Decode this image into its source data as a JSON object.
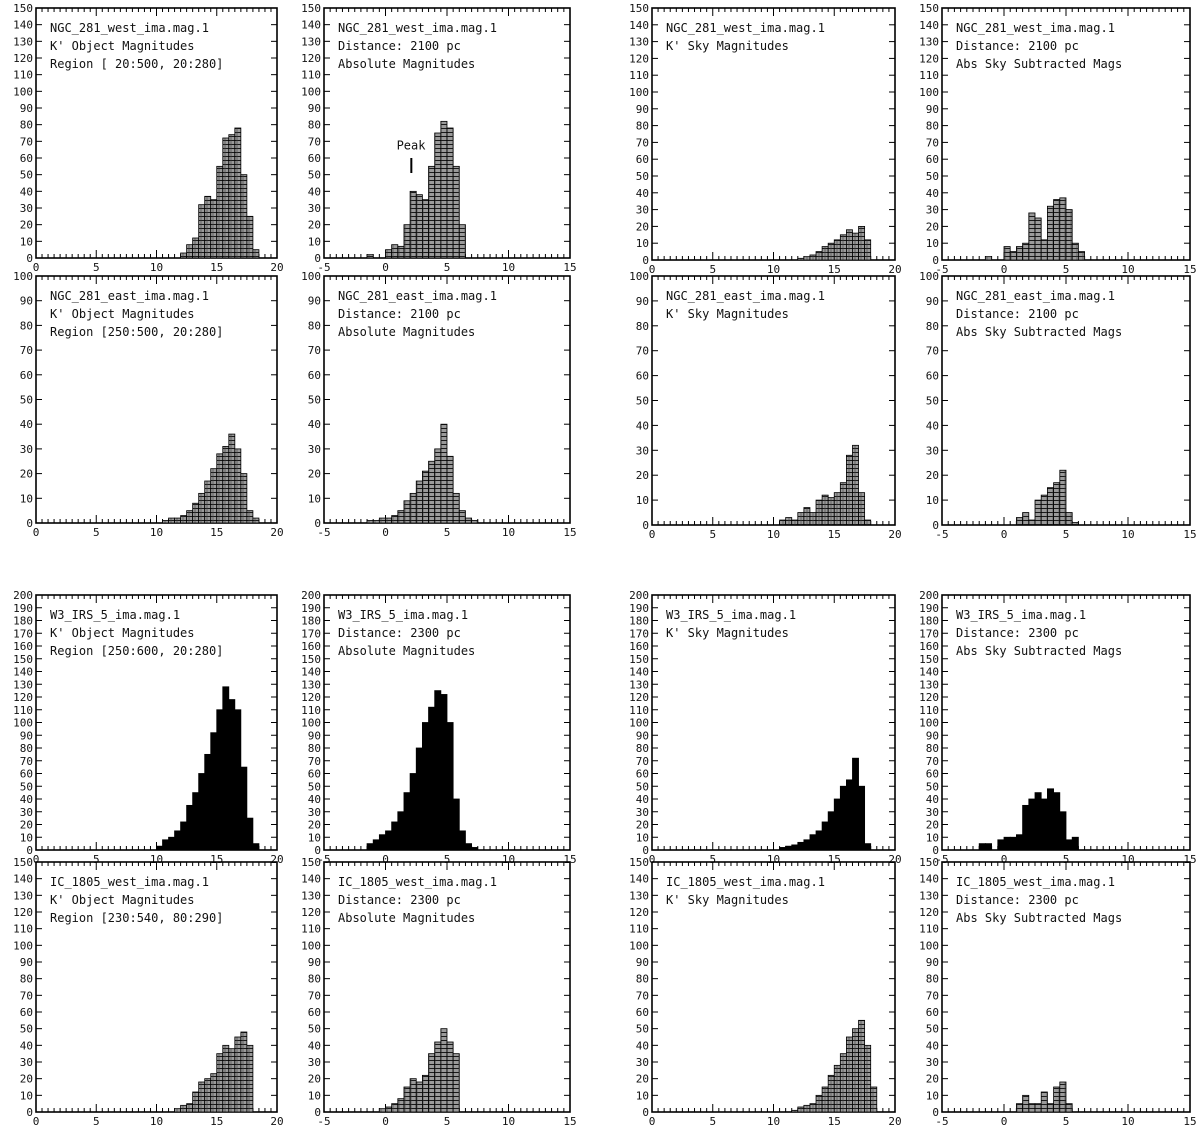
{
  "chart_data": [
    {
      "type": "bar",
      "group": "NGC_281_west",
      "xlim": [
        0,
        20
      ],
      "ylim": [
        0,
        150
      ],
      "ytick_step": 10,
      "xticks": [
        0,
        5,
        10,
        15,
        20
      ],
      "bar_fill": "hatched",
      "annotations": [
        "NGC_281_west_ima.mag.1",
        "K' Object Magnitudes",
        "Region [ 20:500, 20:280]"
      ],
      "x": [
        12.25,
        12.75,
        13.25,
        13.75,
        14.25,
        14.75,
        15.25,
        15.75,
        16.25,
        16.75,
        17.25,
        17.75,
        18.25
      ],
      "values": [
        3,
        8,
        12,
        32,
        37,
        35,
        55,
        72,
        74,
        78,
        50,
        25,
        5
      ]
    },
    {
      "type": "bar",
      "group": "NGC_281_west",
      "xlim": [
        -5,
        15
      ],
      "ylim": [
        0,
        150
      ],
      "ytick_step": 10,
      "xticks": [
        -5,
        0,
        5,
        10,
        15
      ],
      "bar_fill": "hatched",
      "annotations": [
        "NGC_281_west_ima.mag.1",
        "Distance: 2100  pc",
        "Absolute Magnitudes",
        "Peak"
      ],
      "x": [
        -1.25,
        0.25,
        0.75,
        1.25,
        1.75,
        2.25,
        2.75,
        3.25,
        3.75,
        4.25,
        4.75,
        5.25,
        5.75,
        6.25
      ],
      "values": [
        2,
        5,
        8,
        7,
        20,
        40,
        38,
        35,
        55,
        75,
        82,
        78,
        55,
        20
      ]
    },
    {
      "type": "bar",
      "group": "NGC_281_west",
      "xlim": [
        0,
        20
      ],
      "ylim": [
        0,
        150
      ],
      "ytick_step": 10,
      "xticks": [
        0,
        5,
        10,
        15,
        20
      ],
      "bar_fill": "hatched",
      "annotations": [
        "NGC_281_west_ima.mag.1",
        "K' Sky Magnitudes"
      ],
      "x": [
        12.25,
        12.75,
        13.25,
        13.75,
        14.25,
        14.75,
        15.25,
        15.75,
        16.25,
        16.75,
        17.25,
        17.75
      ],
      "values": [
        1,
        2,
        3,
        5,
        8,
        10,
        12,
        15,
        18,
        16,
        20,
        12
      ]
    },
    {
      "type": "bar",
      "group": "NGC_281_west",
      "xlim": [
        -5,
        15
      ],
      "ylim": [
        0,
        150
      ],
      "ytick_step": 10,
      "xticks": [
        -5,
        0,
        5,
        10,
        15
      ],
      "bar_fill": "hatched",
      "annotations": [
        "NGC_281_west_ima.mag.1",
        "Distance: 2100  pc",
        "Abs Sky Subtracted Mags"
      ],
      "x": [
        -1.25,
        0.25,
        0.75,
        1.25,
        1.75,
        2.25,
        2.75,
        3.25,
        3.75,
        4.25,
        4.75,
        5.25,
        5.75,
        6.25
      ],
      "values": [
        2,
        8,
        5,
        8,
        10,
        28,
        25,
        12,
        32,
        36,
        37,
        30,
        10,
        5
      ]
    },
    {
      "type": "bar",
      "group": "NGC_281_east",
      "xlim": [
        0,
        20
      ],
      "ylim": [
        0,
        100
      ],
      "ytick_step": 10,
      "xticks": [
        0,
        5,
        10,
        15,
        20
      ],
      "bar_fill": "hatched",
      "annotations": [
        "NGC_281_east_ima.mag.1",
        "K' Object Magnitudes",
        "Region [250:500, 20:280]"
      ],
      "x": [
        10.75,
        11.25,
        11.75,
        12.25,
        12.75,
        13.25,
        13.75,
        14.25,
        14.75,
        15.25,
        15.75,
        16.25,
        16.75,
        17.25,
        17.75,
        18.25
      ],
      "values": [
        1,
        2,
        2,
        3,
        5,
        8,
        12,
        17,
        22,
        28,
        31,
        36,
        30,
        20,
        5,
        2
      ]
    },
    {
      "type": "bar",
      "group": "NGC_281_east",
      "xlim": [
        -5,
        15
      ],
      "ylim": [
        0,
        100
      ],
      "ytick_step": 10,
      "xticks": [
        -5,
        0,
        5,
        10,
        15
      ],
      "bar_fill": "hatched",
      "annotations": [
        "NGC_281_east_ima.mag.1",
        "Distance: 2100  pc",
        "Absolute Magnitudes"
      ],
      "x": [
        -1.25,
        -0.75,
        -0.25,
        0.25,
        0.75,
        1.25,
        1.75,
        2.25,
        2.75,
        3.25,
        3.75,
        4.25,
        4.75,
        5.25,
        5.75,
        6.25,
        6.75,
        7.25
      ],
      "values": [
        1,
        1,
        2,
        2,
        3,
        5,
        9,
        12,
        17,
        21,
        25,
        30,
        40,
        27,
        12,
        5,
        2,
        1
      ]
    },
    {
      "type": "bar",
      "group": "NGC_281_east",
      "xlim": [
        0,
        20
      ],
      "ylim": [
        0,
        100
      ],
      "ytick_step": 10,
      "xticks": [
        0,
        5,
        10,
        15,
        20
      ],
      "bar_fill": "hatched",
      "annotations": [
        "NGC_281_east_ima.mag.1",
        "K' Sky Magnitudes"
      ],
      "x": [
        10.75,
        11.25,
        11.75,
        12.25,
        12.75,
        13.25,
        13.75,
        14.25,
        14.75,
        15.25,
        15.75,
        16.25,
        16.75,
        17.25,
        17.75
      ],
      "values": [
        2,
        3,
        2,
        5,
        7,
        5,
        10,
        12,
        11,
        13,
        17,
        28,
        32,
        13,
        2
      ]
    },
    {
      "type": "bar",
      "group": "NGC_281_east",
      "xlim": [
        -5,
        15
      ],
      "ylim": [
        0,
        100
      ],
      "ytick_step": 10,
      "xticks": [
        -5,
        0,
        5,
        10,
        15
      ],
      "bar_fill": "hatched",
      "annotations": [
        "NGC_281_east_ima.mag.1",
        "Distance: 2100  pc",
        "Abs Sky Subtracted Mags"
      ],
      "x": [
        1.25,
        1.75,
        2.25,
        2.75,
        3.25,
        3.75,
        4.25,
        4.75,
        5.25,
        5.75
      ],
      "values": [
        3,
        5,
        2,
        10,
        12,
        15,
        17,
        22,
        5,
        1
      ]
    },
    {
      "type": "bar",
      "group": "W3_IRS_5",
      "xlim": [
        0,
        20
      ],
      "ylim": [
        0,
        200
      ],
      "ytick_step": 10,
      "xticks": [
        0,
        5,
        10,
        15,
        20
      ],
      "bar_fill": "solid",
      "annotations": [
        "W3_IRS_5_ima.mag.1",
        "K' Object Magnitudes",
        "Region [250:600, 20:280]"
      ],
      "x": [
        10.25,
        10.75,
        11.25,
        11.75,
        12.25,
        12.75,
        13.25,
        13.75,
        14.25,
        14.75,
        15.25,
        15.75,
        16.25,
        16.75,
        17.25,
        17.75,
        18.25
      ],
      "values": [
        3,
        8,
        10,
        15,
        22,
        35,
        45,
        60,
        75,
        92,
        110,
        128,
        118,
        110,
        65,
        25,
        5
      ]
    },
    {
      "type": "bar",
      "group": "W3_IRS_5",
      "xlim": [
        -5,
        15
      ],
      "ylim": [
        0,
        200
      ],
      "ytick_step": 10,
      "xticks": [
        -5,
        0,
        5,
        10,
        15
      ],
      "bar_fill": "solid",
      "annotations": [
        "W3_IRS_5_ima.mag.1",
        "Distance: 2300  pc",
        "Absolute Magnitudes"
      ],
      "x": [
        -1.25,
        -0.75,
        -0.25,
        0.25,
        0.75,
        1.25,
        1.75,
        2.25,
        2.75,
        3.25,
        3.75,
        4.25,
        4.75,
        5.25,
        5.75,
        6.25,
        6.75,
        7.25
      ],
      "values": [
        5,
        8,
        12,
        15,
        22,
        30,
        45,
        60,
        80,
        100,
        112,
        125,
        122,
        100,
        40,
        15,
        5,
        2
      ]
    },
    {
      "type": "bar",
      "group": "W3_IRS_5",
      "xlim": [
        0,
        20
      ],
      "ylim": [
        0,
        200
      ],
      "ytick_step": 10,
      "xticks": [
        0,
        5,
        10,
        15,
        20
      ],
      "bar_fill": "solid",
      "annotations": [
        "W3_IRS_5_ima.mag.1",
        "K' Sky Magnitudes"
      ],
      "x": [
        10.75,
        11.25,
        11.75,
        12.25,
        12.75,
        13.25,
        13.75,
        14.25,
        14.75,
        15.25,
        15.75,
        16.25,
        16.75,
        17.25,
        17.75
      ],
      "values": [
        2,
        3,
        4,
        6,
        8,
        12,
        15,
        22,
        30,
        40,
        50,
        55,
        72,
        50,
        5
      ]
    },
    {
      "type": "bar",
      "group": "W3_IRS_5",
      "xlim": [
        -5,
        15
      ],
      "ylim": [
        0,
        200
      ],
      "ytick_step": 10,
      "xticks": [
        -5,
        0,
        5,
        10,
        15
      ],
      "bar_fill": "solid",
      "annotations": [
        "W3_IRS_5_ima.mag.1",
        "Distance: 2300  pc",
        "Abs Sky Subtracted Mags"
      ],
      "x": [
        -1.75,
        -1.25,
        -0.25,
        0.25,
        0.75,
        1.25,
        1.75,
        2.25,
        2.75,
        3.25,
        3.75,
        4.25,
        4.75,
        5.25,
        5.75
      ],
      "values": [
        5,
        5,
        8,
        10,
        10,
        12,
        35,
        40,
        45,
        40,
        48,
        45,
        30,
        8,
        10
      ]
    },
    {
      "type": "bar",
      "group": "IC_1805_west",
      "xlim": [
        0,
        20
      ],
      "ylim": [
        0,
        150
      ],
      "ytick_step": 10,
      "xticks": [
        0,
        5,
        10,
        15,
        20
      ],
      "bar_fill": "hatched",
      "annotations": [
        "IC_1805_west_ima.mag.1",
        "K' Object Magnitudes",
        "Region [230:540, 80:290]"
      ],
      "x": [
        11.75,
        12.25,
        12.75,
        13.25,
        13.75,
        14.25,
        14.75,
        15.25,
        15.75,
        16.25,
        16.75,
        17.25,
        17.75
      ],
      "values": [
        2,
        4,
        5,
        12,
        18,
        20,
        23,
        35,
        40,
        38,
        45,
        48,
        40
      ]
    },
    {
      "type": "bar",
      "group": "IC_1805_west",
      "xlim": [
        -5,
        15
      ],
      "ylim": [
        0,
        150
      ],
      "ytick_step": 10,
      "xticks": [
        -5,
        0,
        5,
        10,
        15
      ],
      "bar_fill": "hatched",
      "annotations": [
        "IC_1805_west_ima.mag.1",
        "Distance: 2300  pc",
        "Absolute Magnitudes"
      ],
      "x": [
        -0.25,
        0.25,
        0.75,
        1.25,
        1.75,
        2.25,
        2.75,
        3.25,
        3.75,
        4.25,
        4.75,
        5.25,
        5.75
      ],
      "values": [
        2,
        3,
        5,
        8,
        15,
        20,
        18,
        22,
        35,
        42,
        50,
        42,
        35
      ]
    },
    {
      "type": "bar",
      "group": "IC_1805_west",
      "xlim": [
        0,
        20
      ],
      "ylim": [
        0,
        150
      ],
      "ytick_step": 10,
      "xticks": [
        0,
        5,
        10,
        15,
        20
      ],
      "bar_fill": "hatched",
      "annotations": [
        "IC_1805_west_ima.mag.1",
        "K' Sky Magnitudes"
      ],
      "x": [
        11.75,
        12.25,
        12.75,
        13.25,
        13.75,
        14.25,
        14.75,
        15.25,
        15.75,
        16.25,
        16.75,
        17.25,
        17.75,
        18.25
      ],
      "values": [
        1,
        3,
        4,
        5,
        10,
        15,
        22,
        28,
        35,
        45,
        50,
        55,
        40,
        15
      ]
    },
    {
      "type": "bar",
      "group": "IC_1805_west",
      "xlim": [
        -5,
        15
      ],
      "ylim": [
        0,
        150
      ],
      "ytick_step": 10,
      "xticks": [
        -5,
        0,
        5,
        10,
        15
      ],
      "bar_fill": "hatched",
      "annotations": [
        "IC_1805_west_ima.mag.1",
        "Distance: 2300  pc",
        "Abs Sky Subtracted Mags"
      ],
      "x": [
        1.25,
        1.75,
        2.25,
        2.75,
        3.25,
        3.75,
        4.25,
        4.75,
        5.25
      ],
      "values": [
        5,
        10,
        5,
        5,
        12,
        5,
        15,
        18,
        5
      ]
    }
  ]
}
